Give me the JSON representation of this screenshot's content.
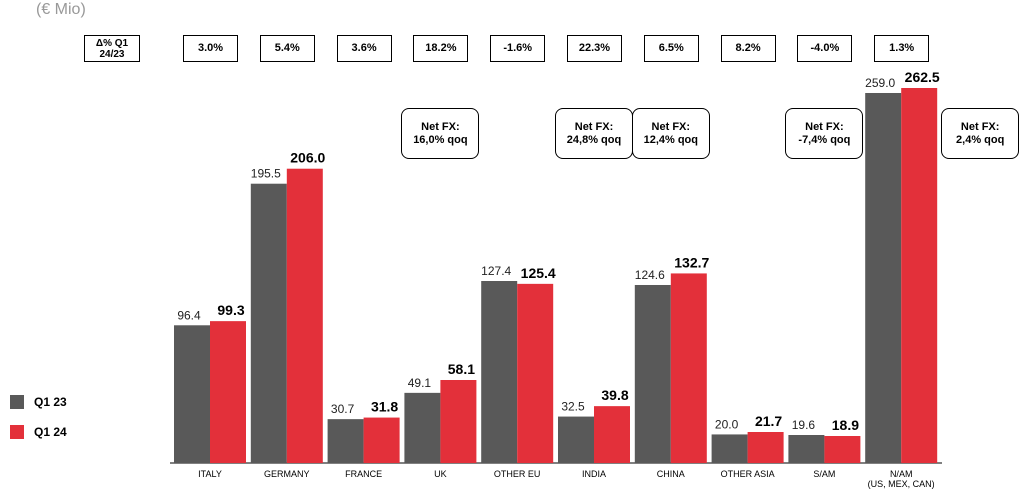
{
  "chart_data": {
    "type": "bar",
    "subtitle": "(€ Mio)",
    "categories": [
      "ITALY",
      "GERMANY",
      "FRANCE",
      "UK",
      "OTHER EU",
      "INDIA",
      "CHINA",
      "OTHER ASIA",
      "S/AM",
      "N/AM\n(US, MEX, CAN)"
    ],
    "series": [
      {
        "name": "Q1 23",
        "color": "#595959",
        "values": [
          96.4,
          195.5,
          30.7,
          49.1,
          127.4,
          32.5,
          124.6,
          20.0,
          19.6,
          259.0
        ],
        "value_labels": [
          "96.4",
          "195.5",
          "30.7",
          "49.1",
          "127.4",
          "32.5",
          "124.6",
          "20.0",
          "19.6",
          "259.0"
        ]
      },
      {
        "name": "Q1 24",
        "color": "#e3303a",
        "values": [
          99.3,
          206.0,
          31.8,
          58.1,
          125.4,
          39.8,
          132.7,
          21.7,
          18.9,
          262.5
        ],
        "value_labels": [
          "99.3",
          "206.0",
          "31.8",
          "58.1",
          "125.4",
          "39.8",
          "132.7",
          "21.7",
          "18.9",
          "262.5"
        ]
      }
    ],
    "delta_row": {
      "label": "Δ% Q1\n24/23",
      "values": [
        "3.0%",
        "5.4%",
        "3.6%",
        "18.2%",
        "-1.6%",
        "22.3%",
        "6.5%",
        "8.2%",
        "-4.0%",
        "1.3%"
      ]
    },
    "annotations": [
      {
        "category": "UK",
        "text": "Net FX:\n16,0% qoq"
      },
      {
        "category": "INDIA",
        "text": "Net FX:\n24,8% qoq"
      },
      {
        "category": "CHINA",
        "text": "Net FX:\n12,4% qoq"
      },
      {
        "category": "S/AM",
        "text": "Net FX:\n-7,4% qoq"
      },
      {
        "category": "N/AM\n(US, MEX, CAN)",
        "text": "Net FX:\n2,4% qoq"
      }
    ],
    "legend": "left"
  }
}
